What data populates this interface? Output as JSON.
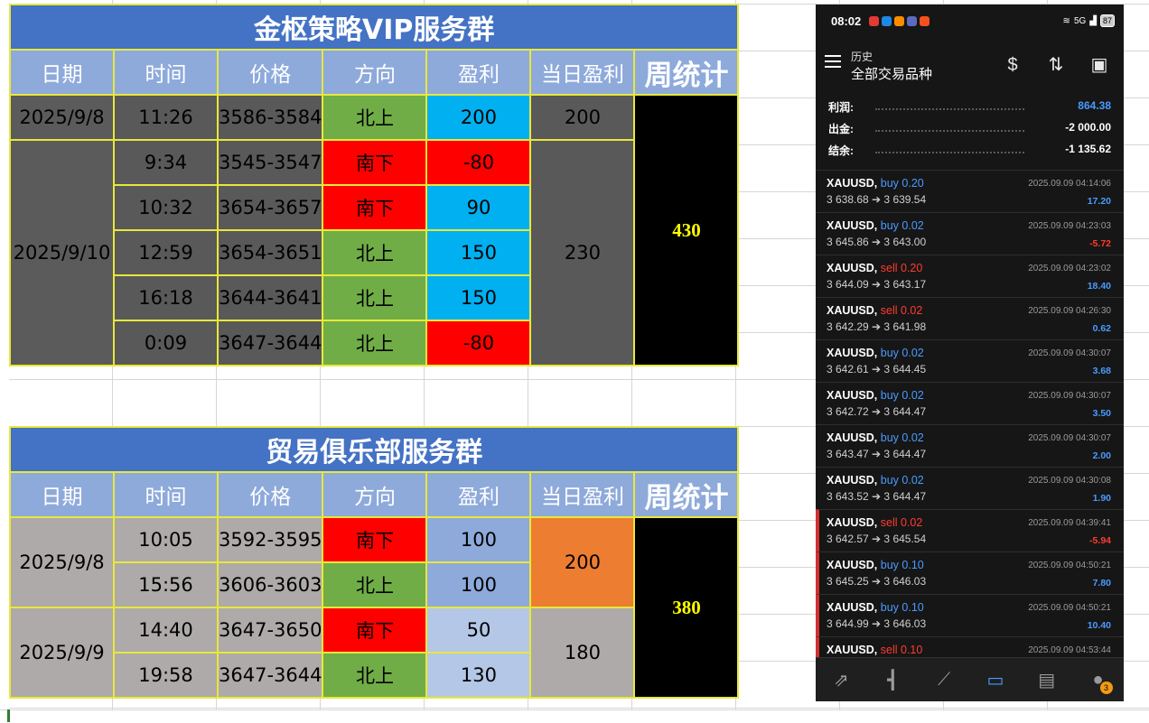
{
  "table1": {
    "title": "金枢策略VIP服务群",
    "headers": [
      "日期",
      "时间",
      "价格",
      "方向",
      "盈利",
      "当日盈利",
      "周统计"
    ],
    "week_total": "430",
    "dates": [
      "2025/9/8",
      "2025/9/10"
    ],
    "daily": [
      "200",
      "230"
    ],
    "rows": [
      {
        "time": "11:26",
        "price": "3586-3584",
        "dir": "北上",
        "profit": "200"
      },
      {
        "time": "9:34",
        "price": "3545-3547",
        "dir": "南下",
        "profit": "-80"
      },
      {
        "time": "10:32",
        "price": "3654-3657",
        "dir": "南下",
        "profit": "90"
      },
      {
        "time": "12:59",
        "price": "3654-3651",
        "dir": "北上",
        "profit": "150"
      },
      {
        "time": "16:18",
        "price": "3644-3641",
        "dir": "北上",
        "profit": "150"
      },
      {
        "time": "0:09",
        "price": "3647-3644",
        "dir": "北上",
        "profit": "-80"
      }
    ]
  },
  "table2": {
    "title": "贸易俱乐部服务群",
    "headers": [
      "日期",
      "时间",
      "价格",
      "方向",
      "盈利",
      "当日盈利",
      "周统计"
    ],
    "week_total": "380",
    "dates": [
      "2025/9/8",
      "2025/9/9"
    ],
    "daily": [
      "200",
      "180"
    ],
    "rows": [
      {
        "time": "10:05",
        "price": "3592-3595",
        "dir": "南下",
        "profit": "100"
      },
      {
        "time": "15:56",
        "price": "3606-3603",
        "dir": "北上",
        "profit": "100"
      },
      {
        "time": "14:40",
        "price": "3647-3650",
        "dir": "南下",
        "profit": "50"
      },
      {
        "time": "19:58",
        "price": "3647-3644",
        "dir": "北上",
        "profit": "130"
      }
    ]
  },
  "phone": {
    "status": {
      "time": "08:02",
      "signal": "5G",
      "battery": "87"
    },
    "header": {
      "subtitle": "历史",
      "title": "全部交易品种"
    },
    "summary": [
      {
        "label": "利润:",
        "value": "864.38"
      },
      {
        "label": "出金:",
        "value": "-2 000.00"
      },
      {
        "label": "结余:",
        "value": "-1 135.62"
      }
    ],
    "trades": [
      {
        "symbol": "XAUUSD,",
        "side": "buy",
        "lot": "0.20",
        "prices": "3 638.68 ➔ 3 639.54",
        "time": "2025.09.09 04:14:06",
        "profit": "17.20"
      },
      {
        "symbol": "XAUUSD,",
        "side": "buy",
        "lot": "0.02",
        "prices": "3 645.86 ➔ 3 643.00",
        "time": "2025.09.09 04:23:03",
        "profit": "-5.72"
      },
      {
        "symbol": "XAUUSD,",
        "side": "sell",
        "lot": "0.20",
        "prices": "3 644.09 ➔ 3 643.17",
        "time": "2025.09.09 04:23:02",
        "profit": "18.40"
      },
      {
        "symbol": "XAUUSD,",
        "side": "sell",
        "lot": "0.02",
        "prices": "3 642.29 ➔ 3 641.98",
        "time": "2025.09.09 04:26:30",
        "profit": "0.62"
      },
      {
        "symbol": "XAUUSD,",
        "side": "buy",
        "lot": "0.02",
        "prices": "3 642.61 ➔ 3 644.45",
        "time": "2025.09.09 04:30:07",
        "profit": "3.68"
      },
      {
        "symbol": "XAUUSD,",
        "side": "buy",
        "lot": "0.02",
        "prices": "3 642.72 ➔ 3 644.47",
        "time": "2025.09.09 04:30:07",
        "profit": "3.50"
      },
      {
        "symbol": "XAUUSD,",
        "side": "buy",
        "lot": "0.02",
        "prices": "3 643.47 ➔ 3 644.47",
        "time": "2025.09.09 04:30:07",
        "profit": "2.00"
      },
      {
        "symbol": "XAUUSD,",
        "side": "buy",
        "lot": "0.02",
        "prices": "3 643.52 ➔ 3 644.47",
        "time": "2025.09.09 04:30:08",
        "profit": "1.90"
      },
      {
        "symbol": "XAUUSD,",
        "side": "sell",
        "lot": "0.02",
        "prices": "3 642.57 ➔ 3 645.54",
        "time": "2025.09.09 04:39:41",
        "profit": "-5.94"
      },
      {
        "symbol": "XAUUSD,",
        "side": "buy",
        "lot": "0.10",
        "prices": "3 645.25 ➔ 3 646.03",
        "time": "2025.09.09 04:50:21",
        "profit": "7.80"
      },
      {
        "symbol": "XAUUSD,",
        "side": "buy",
        "lot": "0.10",
        "prices": "3 644.99 ➔ 3 646.03",
        "time": "2025.09.09 04:50:21",
        "profit": "10.40"
      },
      {
        "symbol": "XAUUSD,",
        "side": "sell",
        "lot": "0.10",
        "prices": "",
        "time": "2025.09.09 04:53:44",
        "profit": ""
      }
    ],
    "nav_badge": "3"
  }
}
